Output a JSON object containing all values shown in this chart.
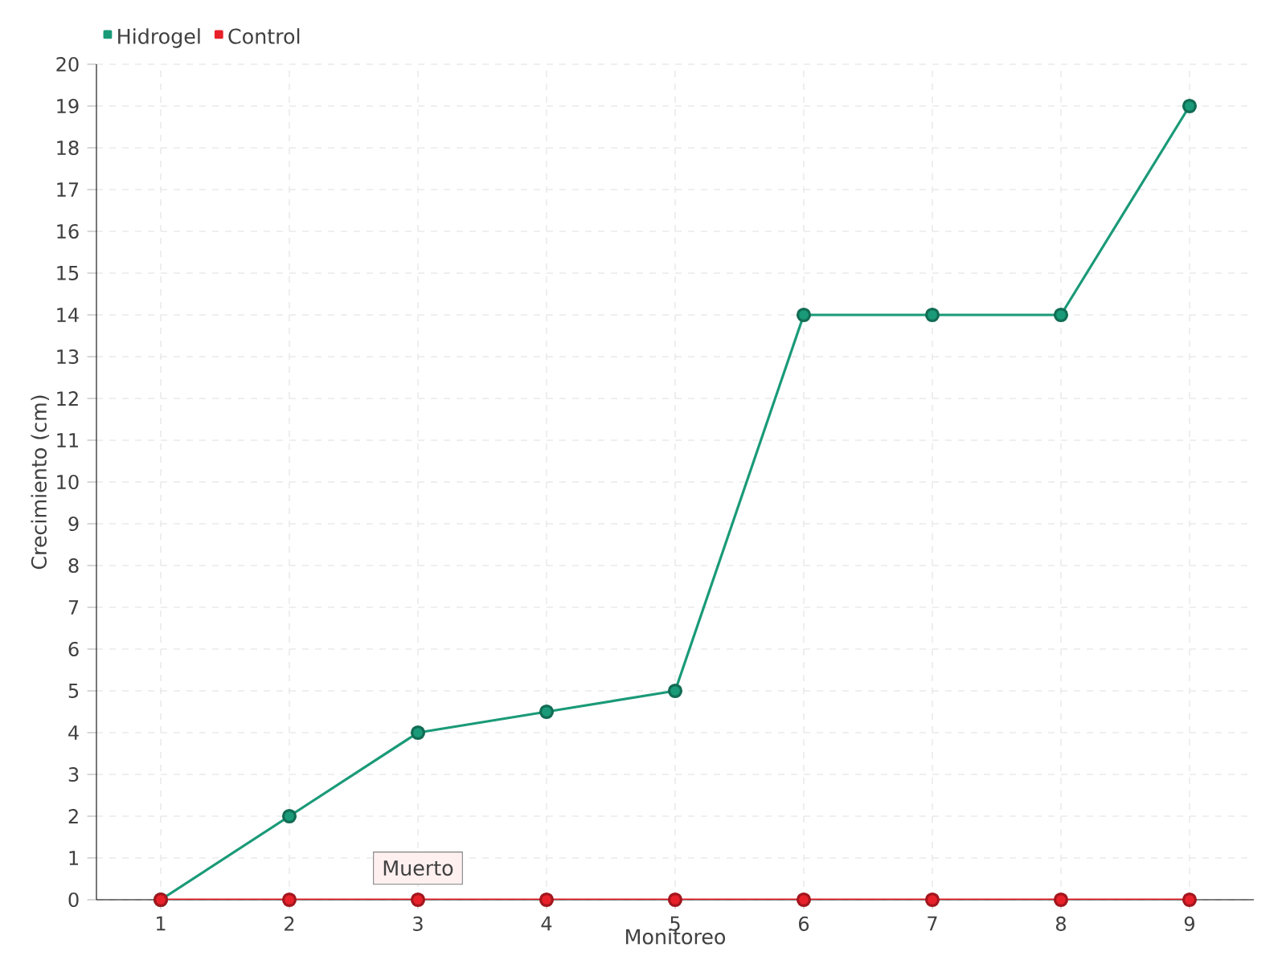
{
  "chart_data": {
    "type": "line",
    "xlabel": "Monitoreo",
    "ylabel": "Crecimiento (cm)",
    "categories": [
      "1",
      "2",
      "3",
      "4",
      "5",
      "6",
      "7",
      "8",
      "9"
    ],
    "series": [
      {
        "name": "Hidrogel",
        "color": "#1a9a78",
        "values": [
          0,
          2,
          4,
          4.5,
          5,
          14,
          14,
          14,
          19
        ]
      },
      {
        "name": "Control",
        "color": "#e8202a",
        "values": [
          0,
          0,
          0,
          0,
          0,
          0,
          0,
          0,
          0
        ]
      }
    ],
    "ylim": [
      0,
      20
    ],
    "yticks": [
      0,
      1,
      2,
      3,
      4,
      5,
      6,
      7,
      8,
      9,
      10,
      11,
      12,
      13,
      14,
      15,
      16,
      17,
      18,
      19,
      20
    ],
    "annotations": [
      {
        "text": "Muerto",
        "x": "3",
        "y": 0
      }
    ],
    "grid": true,
    "legend": "top left",
    "marker": "circle",
    "line_style": "solid"
  }
}
